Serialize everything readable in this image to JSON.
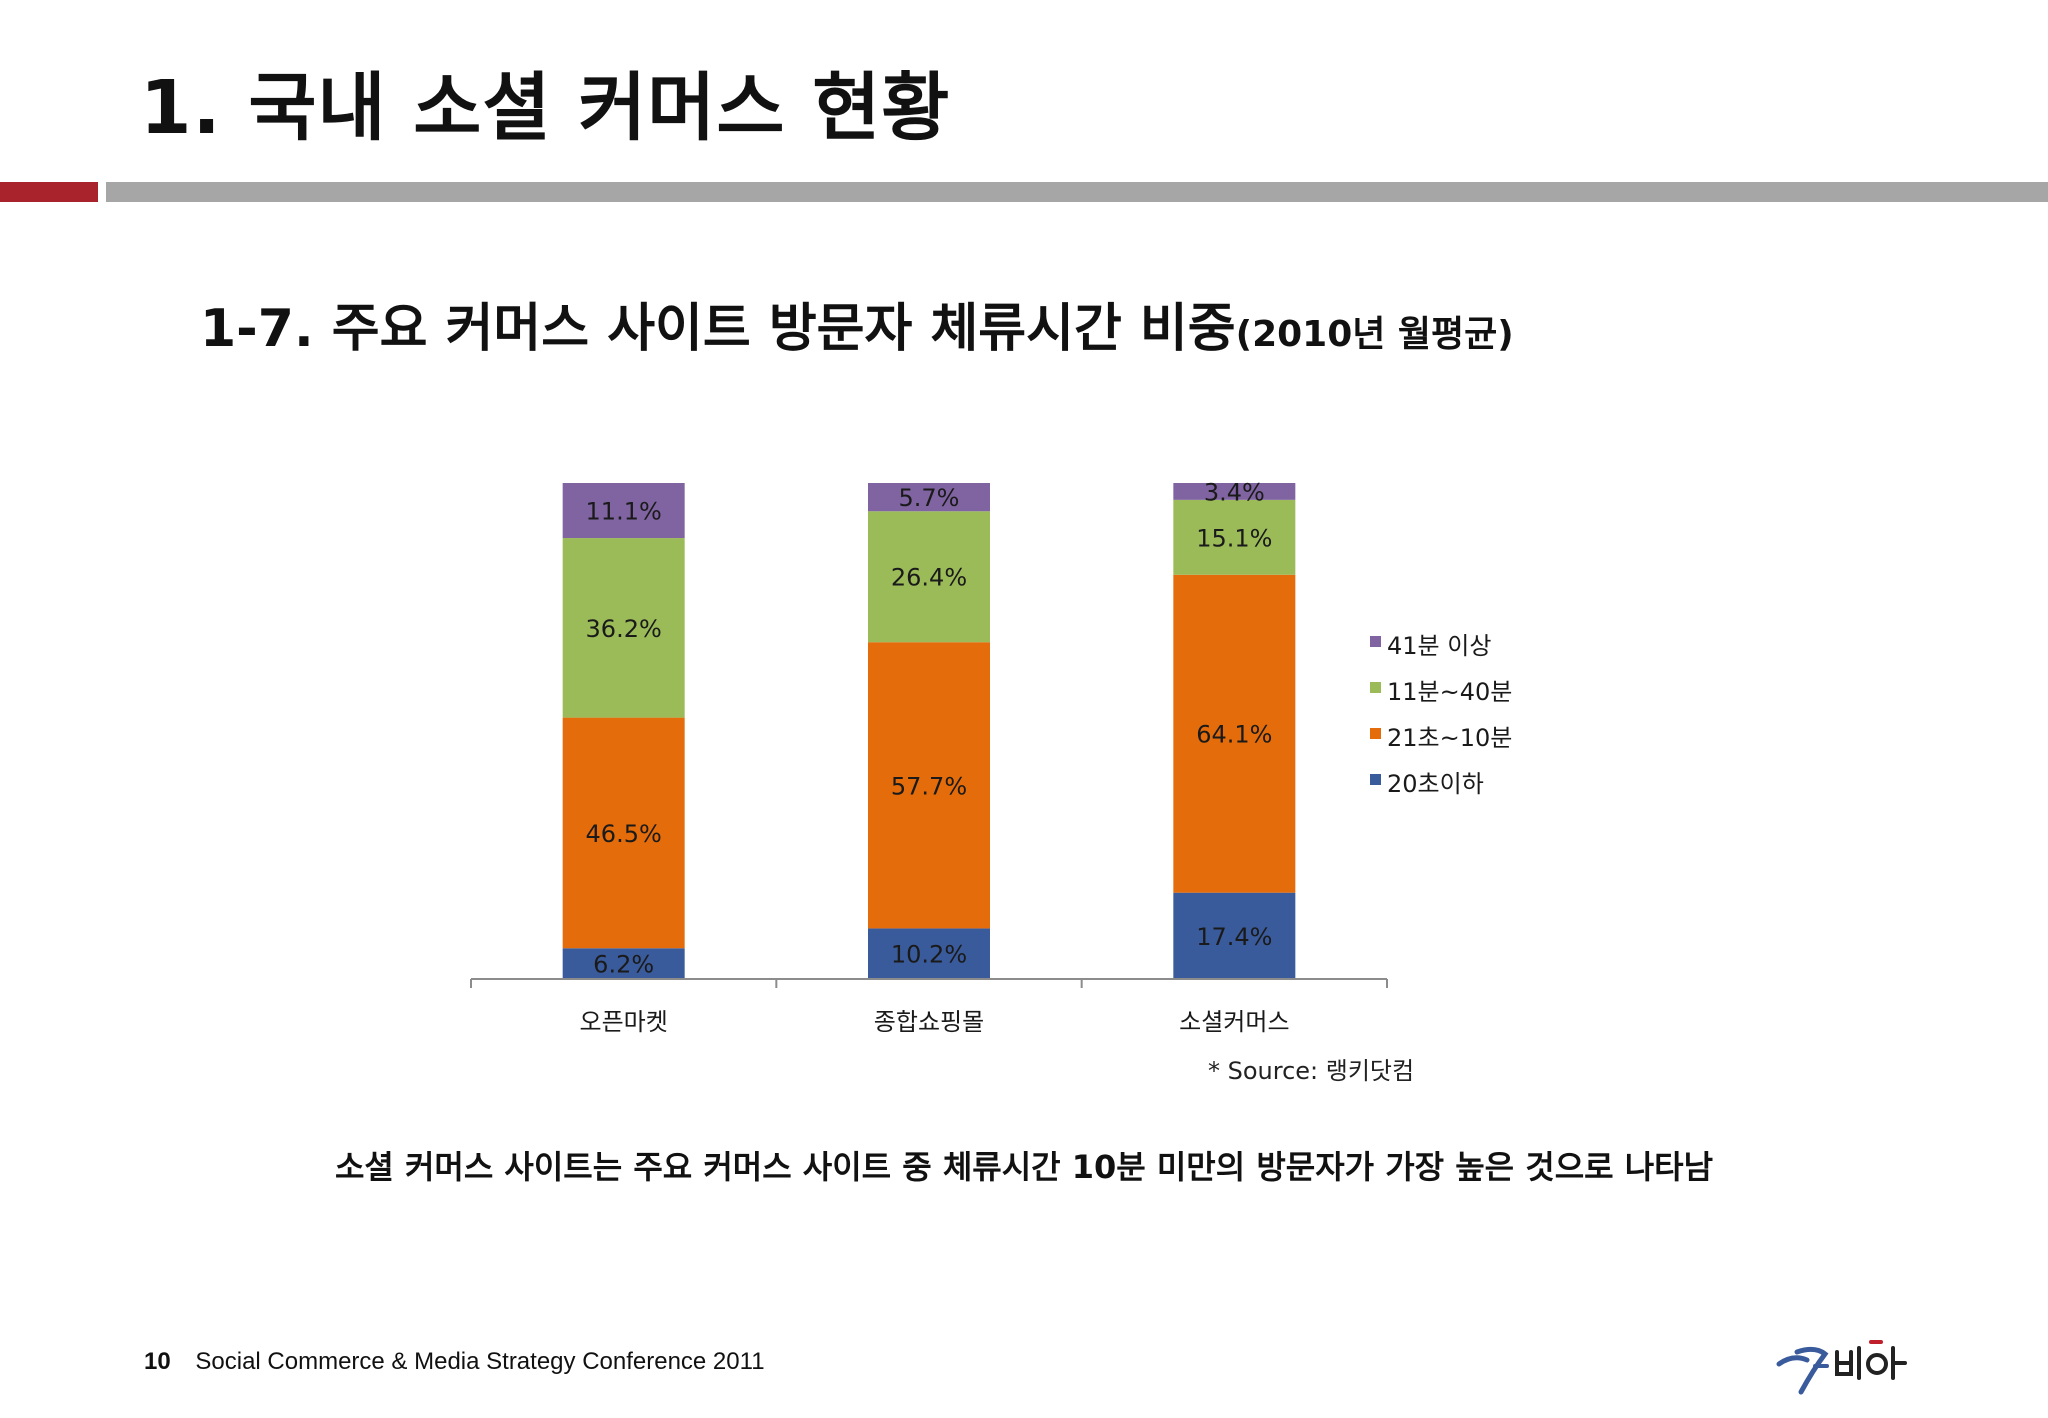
{
  "slide": {
    "title": "1. 국내 소셜 커머스 현황",
    "subtitle_main": "1-7. 주요 커머스 사이트 방문자 체류시간 비중",
    "subtitle_suffix": "(2010년 월평균)",
    "source": "* Source: 랭키닷컴",
    "conclusion": "소셜 커머스 사이트는 주요 커머스 사이트 중 체류시간 10분 미만의 방문자가 가장 높은 것으로 나타남",
    "footer_page": "10",
    "footer_text": "Social Commerce & Media Strategy Conference 2011",
    "accent_red": "#a8232c",
    "divider_gray": "#a6a6a6"
  },
  "chart_data": {
    "type": "bar",
    "stacked": true,
    "normalized": true,
    "categories": [
      "오픈마켓",
      "종합쇼핑몰",
      "소셜커머스"
    ],
    "series": [
      {
        "name": "20초이하",
        "color": "#3a5b9b",
        "values": [
          6.2,
          10.2,
          17.4
        ],
        "labels": [
          "6.2%",
          "10.2%",
          "17.4%"
        ]
      },
      {
        "name": "21초~10분",
        "color": "#e46c0a",
        "values": [
          46.5,
          57.7,
          64.1
        ],
        "labels": [
          "46.5%",
          "57.7%",
          "64.1%"
        ]
      },
      {
        "name": "11분~40분",
        "color": "#9bbb59",
        "values": [
          36.2,
          26.4,
          15.1
        ],
        "labels": [
          "36.2%",
          "26.4%",
          "15.1%"
        ]
      },
      {
        "name": "41분 이상",
        "color": "#8064a2",
        "values": [
          11.1,
          5.7,
          3.4
        ],
        "labels": [
          "11.1%",
          "5.7%",
          "3.4%"
        ]
      }
    ],
    "legend_order": [
      "41분 이상",
      "11분~40분",
      "21초~10분",
      "20초이하"
    ],
    "legend_position": "right",
    "grid": false
  }
}
